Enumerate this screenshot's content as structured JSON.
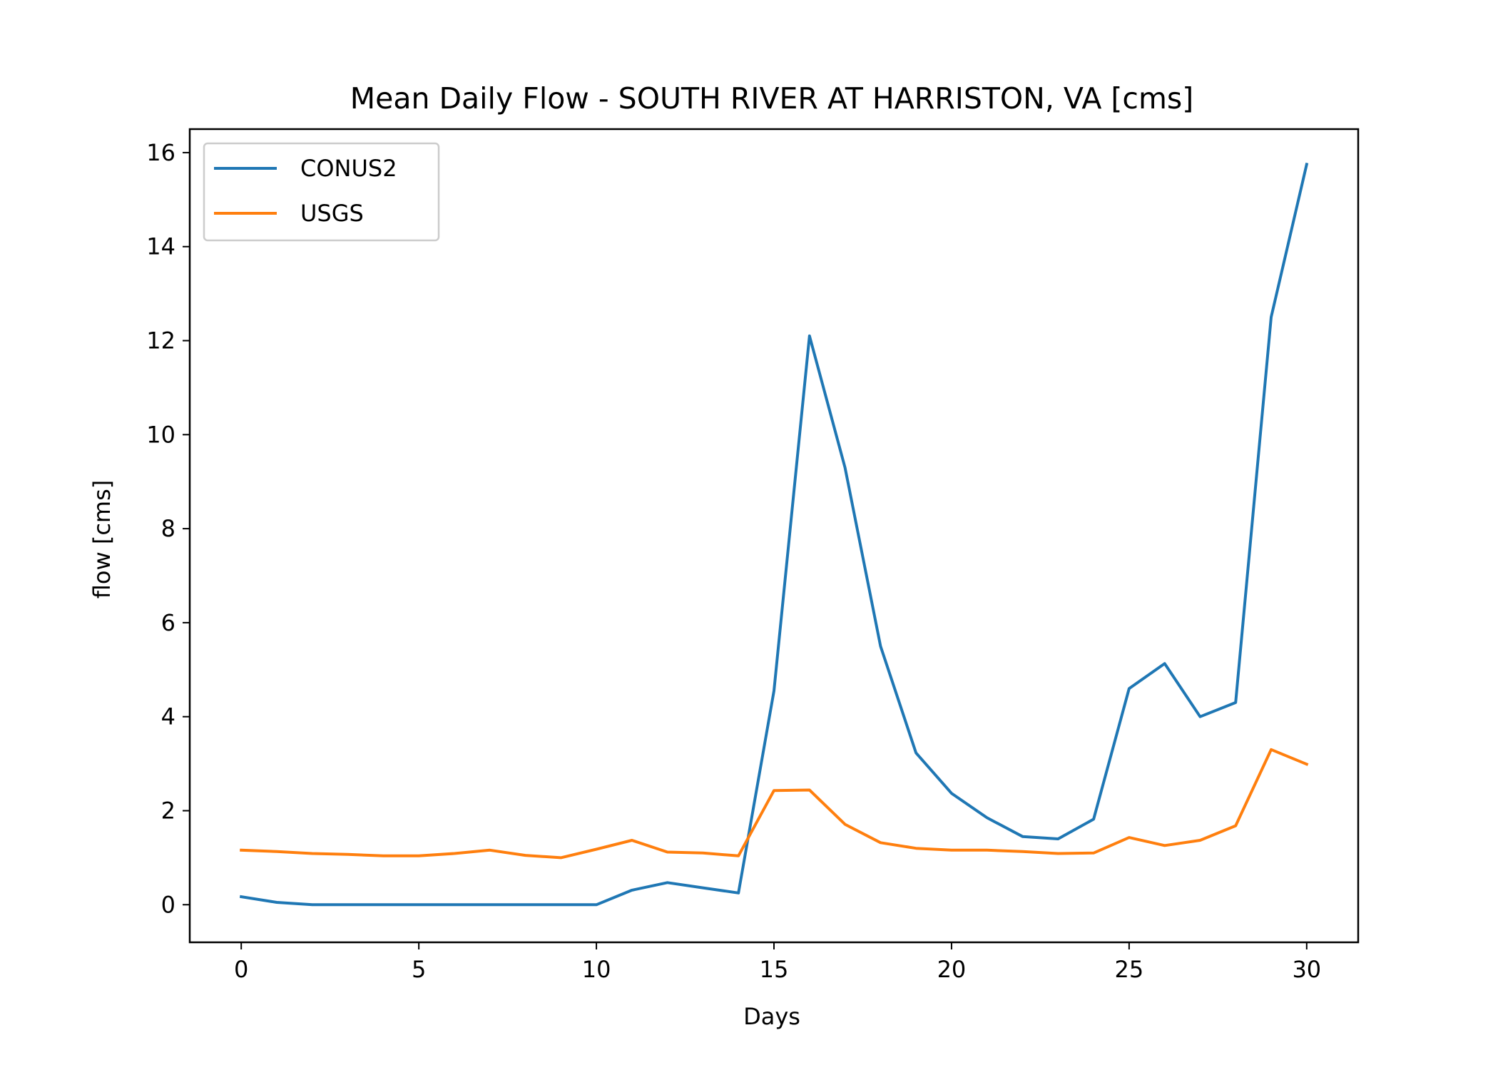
{
  "chart_data": {
    "type": "line",
    "title": "Mean Daily Flow - SOUTH RIVER AT HARRISTON, VA [cms]",
    "xlabel": "Days",
    "ylabel": "flow [cms]",
    "xlim": [
      -1.45,
      31.45
    ],
    "ylim": [
      -0.8,
      16.5
    ],
    "xticks": [
      0,
      5,
      10,
      15,
      20,
      25,
      30
    ],
    "yticks": [
      0,
      2,
      4,
      6,
      8,
      10,
      12,
      14,
      16
    ],
    "grid": false,
    "legend_position": "top-left",
    "x": [
      0,
      1,
      2,
      3,
      4,
      5,
      6,
      7,
      8,
      9,
      10,
      11,
      12,
      13,
      14,
      15,
      16,
      17,
      18,
      19,
      20,
      21,
      22,
      23,
      24,
      25,
      26,
      27,
      28,
      29,
      30
    ],
    "series": [
      {
        "name": "CONUS2",
        "color": "#1f77b4",
        "values": [
          0.17,
          0.05,
          0.0,
          0.0,
          0.0,
          0.0,
          0.0,
          0.0,
          0.0,
          0.0,
          0.0,
          0.31,
          0.47,
          0.36,
          0.25,
          4.55,
          12.1,
          9.3,
          5.5,
          3.23,
          2.37,
          1.85,
          1.45,
          1.4,
          1.82,
          4.6,
          5.13,
          4.0,
          4.3,
          12.5,
          15.75
        ]
      },
      {
        "name": "USGS",
        "color": "#ff7f0e",
        "values": [
          1.16,
          1.13,
          1.09,
          1.07,
          1.04,
          1.04,
          1.09,
          1.16,
          1.05,
          1.0,
          1.18,
          1.37,
          1.12,
          1.1,
          1.04,
          2.43,
          2.44,
          1.71,
          1.32,
          1.2,
          1.16,
          1.16,
          1.13,
          1.09,
          1.1,
          1.43,
          1.26,
          1.37,
          1.68,
          3.3,
          2.99
        ]
      }
    ]
  }
}
